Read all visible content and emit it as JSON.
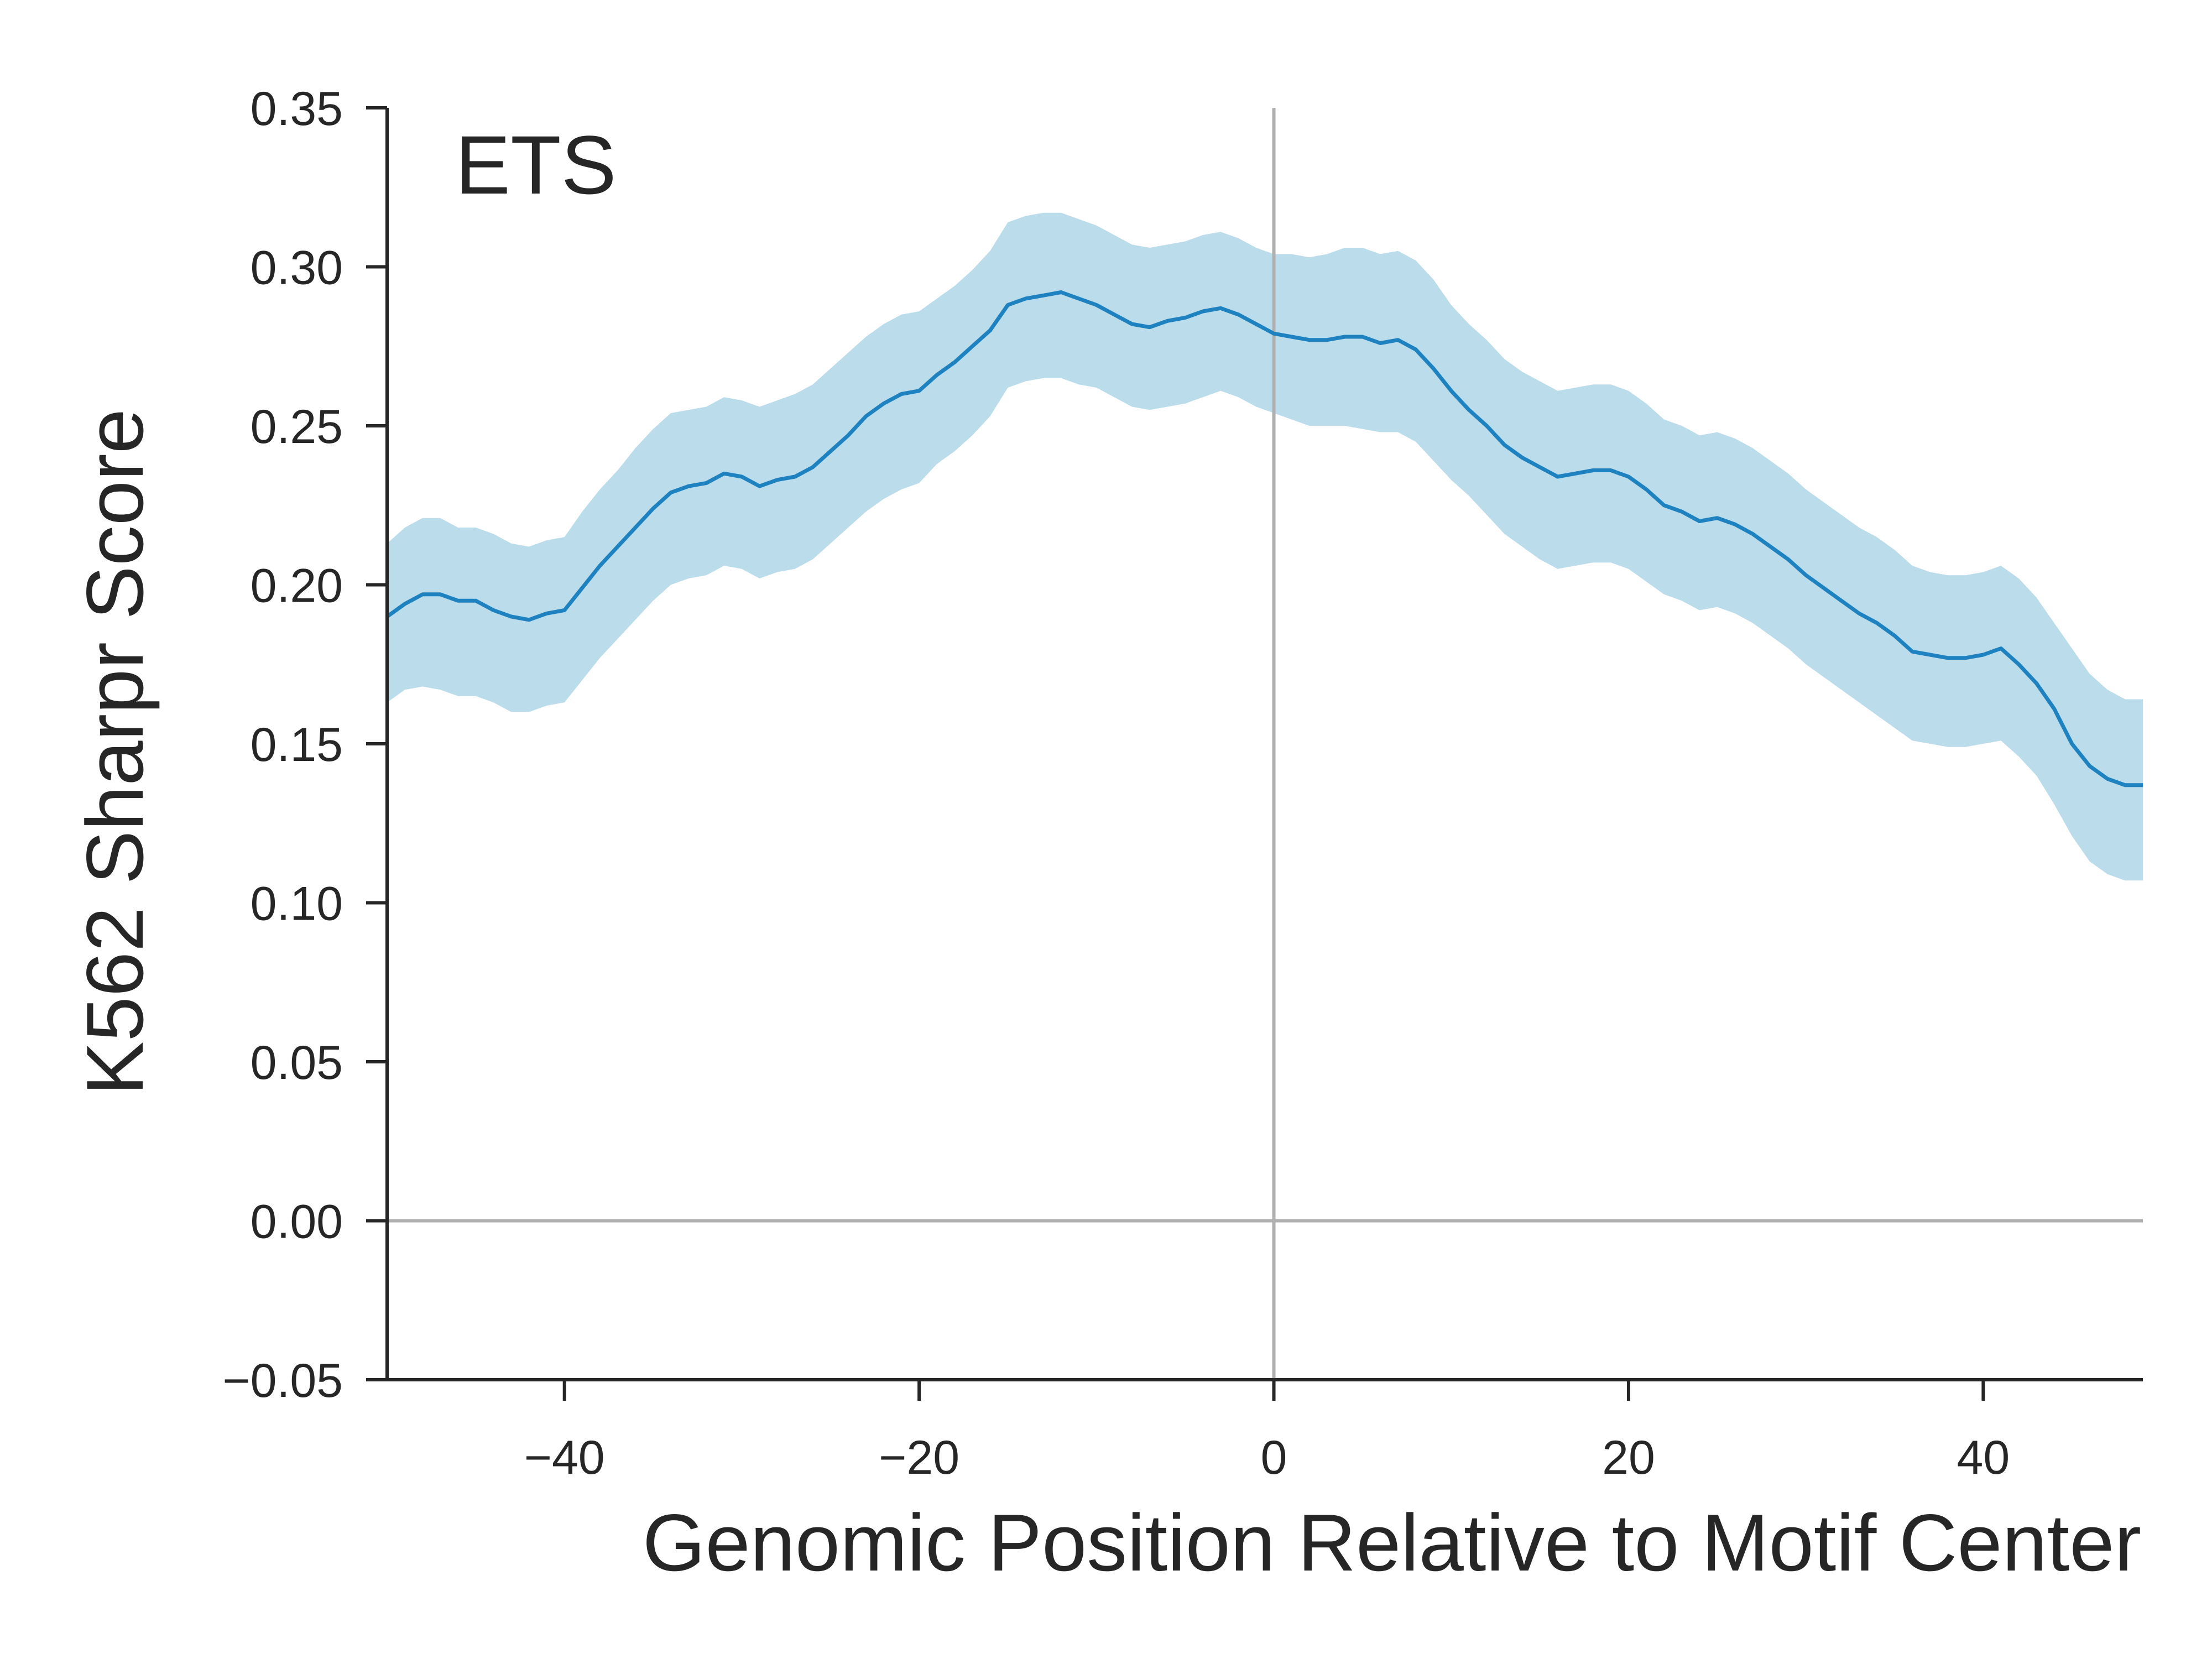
{
  "chart_data": {
    "type": "line",
    "title": "",
    "annotation": "ETS",
    "xlabel": "Genomic Position Relative to Motif Center",
    "ylabel": "K562 Sharpr Score",
    "xlim": [
      -50,
      49
    ],
    "ylim": [
      -0.05,
      0.35
    ],
    "xticks": [
      -40,
      -20,
      0,
      20,
      40
    ],
    "xtick_labels": [
      "−40",
      "−20",
      "0",
      "20",
      "40"
    ],
    "yticks": [
      -0.05,
      0.0,
      0.05,
      0.1,
      0.15,
      0.2,
      0.25,
      0.3,
      0.35
    ],
    "ytick_labels": [
      "−0.05",
      "0.00",
      "0.05",
      "0.10",
      "0.15",
      "0.20",
      "0.25",
      "0.30",
      "0.35"
    ],
    "reference_lines": {
      "x": 0,
      "y": 0
    },
    "grid": false,
    "colors": {
      "line": "#1f82c0",
      "band": "#bbdcea",
      "reference": "#b0b0b0",
      "axis": "#262626"
    },
    "series": [
      {
        "x": [
          -50,
          -49,
          -48,
          -47,
          -46,
          -45,
          -44,
          -43,
          -42,
          -41,
          -40,
          -39,
          -38,
          -37,
          -36,
          -35,
          -34,
          -33,
          -32,
          -31,
          -30,
          -29,
          -28,
          -27,
          -26,
          -25,
          -24,
          -23,
          -22,
          -21,
          -20,
          -19,
          -18,
          -17,
          -16,
          -15,
          -14,
          -13,
          -12,
          -11,
          -10,
          -9,
          -8,
          -7,
          -6,
          -5,
          -4,
          -3,
          -2,
          -1,
          0,
          1,
          2,
          3,
          4,
          5,
          6,
          7,
          8,
          9,
          10,
          11,
          12,
          13,
          14,
          15,
          16,
          17,
          18,
          19,
          20,
          21,
          22,
          23,
          24,
          25,
          26,
          27,
          28,
          29,
          30,
          31,
          32,
          33,
          34,
          35,
          36,
          37,
          38,
          39,
          40,
          41,
          42,
          43,
          44,
          45,
          46,
          47,
          48,
          49
        ],
        "y": [
          0.19,
          0.194,
          0.197,
          0.197,
          0.195,
          0.195,
          0.192,
          0.19,
          0.189,
          0.191,
          0.192,
          0.199,
          0.206,
          0.212,
          0.218,
          0.224,
          0.229,
          0.231,
          0.232,
          0.235,
          0.234,
          0.231,
          0.233,
          0.234,
          0.237,
          0.242,
          0.247,
          0.253,
          0.257,
          0.26,
          0.261,
          0.266,
          0.27,
          0.275,
          0.28,
          0.288,
          0.29,
          0.291,
          0.292,
          0.29,
          0.288,
          0.285,
          0.282,
          0.281,
          0.283,
          0.284,
          0.286,
          0.287,
          0.285,
          0.282,
          0.279,
          0.278,
          0.277,
          0.277,
          0.278,
          0.278,
          0.276,
          0.277,
          0.274,
          0.268,
          0.261,
          0.255,
          0.25,
          0.244,
          0.24,
          0.237,
          0.234,
          0.235,
          0.236,
          0.236,
          0.234,
          0.23,
          0.225,
          0.223,
          0.22,
          0.221,
          0.219,
          0.216,
          0.212,
          0.208,
          0.203,
          0.199,
          0.195,
          0.191,
          0.188,
          0.184,
          0.179,
          0.178,
          0.177,
          0.177,
          0.178,
          0.18,
          0.175,
          0.169,
          0.161,
          0.15,
          0.143,
          0.139,
          0.137,
          0.137
        ],
        "lower": [
          0.163,
          0.167,
          0.168,
          0.167,
          0.165,
          0.165,
          0.163,
          0.16,
          0.16,
          0.162,
          0.163,
          0.17,
          0.177,
          0.183,
          0.189,
          0.195,
          0.2,
          0.202,
          0.203,
          0.206,
          0.205,
          0.202,
          0.204,
          0.205,
          0.208,
          0.213,
          0.218,
          0.223,
          0.227,
          0.23,
          0.232,
          0.238,
          0.242,
          0.247,
          0.253,
          0.262,
          0.264,
          0.265,
          0.265,
          0.263,
          0.262,
          0.259,
          0.256,
          0.255,
          0.256,
          0.257,
          0.259,
          0.261,
          0.259,
          0.256,
          0.254,
          0.252,
          0.25,
          0.25,
          0.25,
          0.249,
          0.248,
          0.248,
          0.245,
          0.239,
          0.233,
          0.228,
          0.222,
          0.216,
          0.212,
          0.208,
          0.205,
          0.206,
          0.207,
          0.207,
          0.205,
          0.201,
          0.197,
          0.195,
          0.192,
          0.193,
          0.191,
          0.188,
          0.184,
          0.18,
          0.175,
          0.171,
          0.167,
          0.163,
          0.159,
          0.155,
          0.151,
          0.15,
          0.149,
          0.149,
          0.15,
          0.151,
          0.146,
          0.14,
          0.131,
          0.121,
          0.113,
          0.109,
          0.107,
          0.107
        ],
        "upper": [
          0.213,
          0.218,
          0.221,
          0.221,
          0.218,
          0.218,
          0.216,
          0.213,
          0.212,
          0.214,
          0.215,
          0.223,
          0.23,
          0.236,
          0.243,
          0.249,
          0.254,
          0.255,
          0.256,
          0.259,
          0.258,
          0.256,
          0.258,
          0.26,
          0.263,
          0.268,
          0.273,
          0.278,
          0.282,
          0.285,
          0.286,
          0.29,
          0.294,
          0.299,
          0.305,
          0.314,
          0.316,
          0.317,
          0.317,
          0.315,
          0.313,
          0.31,
          0.307,
          0.306,
          0.307,
          0.308,
          0.31,
          0.311,
          0.309,
          0.306,
          0.304,
          0.304,
          0.303,
          0.304,
          0.306,
          0.306,
          0.304,
          0.305,
          0.302,
          0.296,
          0.288,
          0.282,
          0.277,
          0.271,
          0.267,
          0.264,
          0.261,
          0.262,
          0.263,
          0.263,
          0.261,
          0.257,
          0.252,
          0.25,
          0.247,
          0.248,
          0.246,
          0.243,
          0.239,
          0.235,
          0.23,
          0.226,
          0.222,
          0.218,
          0.215,
          0.211,
          0.206,
          0.204,
          0.203,
          0.203,
          0.204,
          0.206,
          0.202,
          0.196,
          0.188,
          0.18,
          0.172,
          0.167,
          0.164,
          0.164
        ]
      }
    ]
  }
}
